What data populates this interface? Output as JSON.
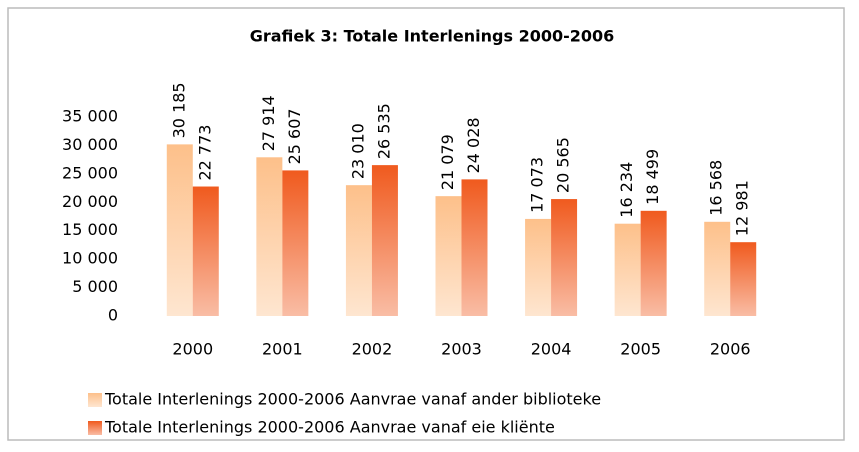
{
  "chart_data": {
    "type": "bar",
    "title": "Grafiek 3: Totale Interlenings 2000-2006",
    "categories": [
      "2000",
      "2001",
      "2002",
      "2003",
      "2004",
      "2005",
      "2006"
    ],
    "series": [
      {
        "name": "Totale Interlenings 2000-2006 Aanvrae vanaf ander biblioteke",
        "color": "#fdc08a",
        "values": [
          30185,
          27914,
          23010,
          21079,
          17073,
          16234,
          16568
        ],
        "value_labels": [
          "30 185",
          "27 914",
          "23 010",
          "21 079",
          "17 073",
          "16 234",
          "16 568"
        ]
      },
      {
        "name": "Totale Interlenings 2000-2006 Aanvrae vanaf eie kliënte",
        "color": "#f05a1e",
        "values": [
          22773,
          25607,
          26535,
          24028,
          20565,
          18499,
          12981
        ],
        "value_labels": [
          "22 773",
          "25 607",
          "26 535",
          "24 028",
          "20 565",
          "18 499",
          "12 981"
        ]
      }
    ],
    "ylim": [
      0,
      35000
    ],
    "yticks": [
      0,
      {
        "value": 5000,
        "label": "5 000"
      },
      {
        "value": 10000,
        "label": "10 000"
      },
      {
        "value": 15000,
        "label": "15 000"
      },
      {
        "value": 20000,
        "label": "20 000"
      },
      {
        "value": 25000,
        "label": "25 000"
      },
      {
        "value": 30000,
        "label": "30 000"
      },
      {
        "value": 35000,
        "label": "35 000"
      }
    ],
    "grid": false,
    "legend": "bottom"
  }
}
